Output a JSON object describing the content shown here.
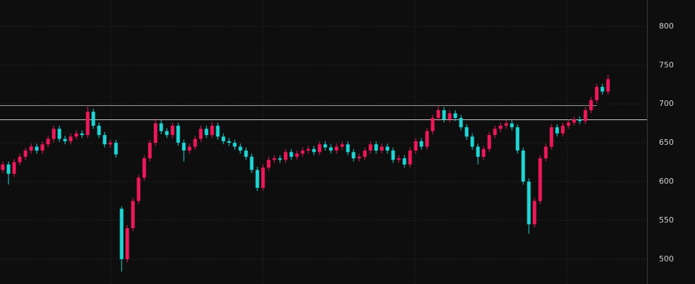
{
  "chart_data": {
    "type": "candlestick",
    "up_color": "#f0185a",
    "down_color": "#1fd6d6",
    "ylim": [
      468,
      834
    ],
    "yticks": [
      500,
      550,
      600,
      650,
      700,
      750,
      800
    ],
    "grid": true,
    "hlines": [
      698,
      680
    ],
    "open": [
      615,
      622,
      610,
      625,
      632,
      640,
      645,
      640,
      648,
      655,
      668,
      655,
      652,
      658,
      662,
      660,
      690,
      672,
      660,
      648,
      650,
      565,
      500,
      540,
      575,
      605,
      630,
      650,
      675,
      665,
      660,
      672,
      650,
      640,
      645,
      655,
      668,
      660,
      672,
      658,
      652,
      650,
      645,
      640,
      632,
      615,
      592,
      618,
      628,
      630,
      628,
      638,
      632,
      636,
      640,
      642,
      638,
      648,
      644,
      640,
      645,
      648,
      638,
      630,
      632,
      640,
      648,
      640,
      645,
      640,
      628,
      630,
      622,
      640,
      652,
      645,
      665,
      682,
      692,
      680,
      688,
      682,
      670,
      658,
      645,
      632,
      642,
      660,
      668,
      672,
      675,
      670,
      640,
      600,
      545,
      575,
      630,
      645,
      670,
      662,
      672,
      676,
      680,
      678,
      692,
      705,
      722,
      716
    ],
    "high": [
      626,
      626,
      629,
      636,
      644,
      649,
      649,
      652,
      659,
      672,
      672,
      659,
      662,
      666,
      666,
      697,
      694,
      676,
      664,
      654,
      654,
      568,
      544,
      579,
      609,
      634,
      654,
      681,
      679,
      669,
      676,
      676,
      654,
      649,
      659,
      672,
      672,
      677,
      676,
      662,
      656,
      654,
      649,
      644,
      636,
      619,
      622,
      632,
      634,
      634,
      642,
      642,
      640,
      644,
      646,
      646,
      652,
      652,
      648,
      649,
      652,
      652,
      642,
      636,
      644,
      652,
      652,
      649,
      649,
      644,
      634,
      634,
      644,
      656,
      656,
      669,
      686,
      697,
      696,
      692,
      692,
      686,
      674,
      662,
      649,
      646,
      664,
      672,
      676,
      679,
      679,
      674,
      644,
      604,
      579,
      634,
      649,
      674,
      674,
      676,
      680,
      684,
      684,
      696,
      709,
      726,
      726,
      738
    ],
    "low": [
      611,
      596,
      606,
      621,
      628,
      636,
      636,
      636,
      644,
      651,
      651,
      648,
      648,
      654,
      656,
      656,
      668,
      656,
      644,
      644,
      631,
      484,
      496,
      536,
      571,
      601,
      626,
      646,
      661,
      656,
      656,
      646,
      626,
      636,
      641,
      651,
      656,
      656,
      654,
      648,
      646,
      641,
      636,
      628,
      611,
      588,
      588,
      614,
      624,
      624,
      624,
      628,
      628,
      632,
      636,
      634,
      634,
      640,
      636,
      636,
      641,
      634,
      626,
      626,
      628,
      636,
      636,
      636,
      636,
      624,
      624,
      618,
      618,
      636,
      641,
      641,
      661,
      678,
      676,
      676,
      678,
      666,
      654,
      641,
      622,
      628,
      638,
      656,
      664,
      668,
      666,
      636,
      596,
      533,
      541,
      571,
      626,
      641,
      658,
      658,
      668,
      672,
      674,
      674,
      688,
      701,
      712,
      712
    ],
    "close": [
      622,
      610,
      625,
      632,
      640,
      645,
      640,
      648,
      655,
      668,
      655,
      652,
      658,
      662,
      660,
      690,
      672,
      660,
      648,
      650,
      635,
      500,
      540,
      575,
      605,
      630,
      650,
      675,
      665,
      660,
      672,
      650,
      640,
      645,
      655,
      668,
      660,
      672,
      658,
      652,
      650,
      645,
      640,
      632,
      615,
      592,
      618,
      628,
      630,
      628,
      638,
      632,
      636,
      640,
      642,
      638,
      648,
      644,
      640,
      645,
      648,
      638,
      630,
      632,
      640,
      648,
      640,
      645,
      640,
      628,
      630,
      622,
      640,
      652,
      645,
      665,
      682,
      692,
      680,
      688,
      682,
      670,
      658,
      645,
      632,
      642,
      660,
      668,
      672,
      675,
      670,
      640,
      600,
      545,
      575,
      630,
      645,
      670,
      662,
      672,
      676,
      680,
      678,
      692,
      705,
      722,
      716,
      732
    ]
  }
}
